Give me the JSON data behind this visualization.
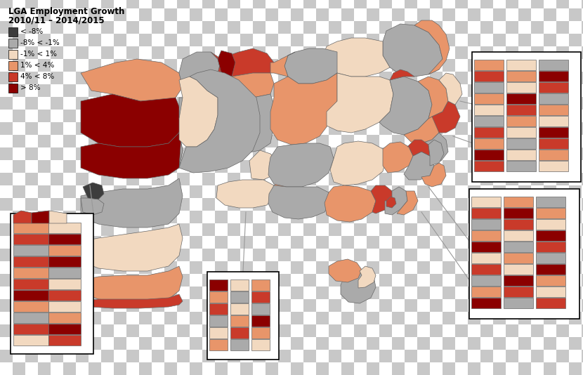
{
  "title_line1": "LGA Employment Growth",
  "title_line2": "2010/11 – 2014/2015",
  "legend_labels": [
    "< -8%",
    "-8% < -1%",
    "-1% < 1%",
    "1% < 4%",
    "4% < 8%",
    "> 8%"
  ],
  "legend_colors": [
    "#3d3d3d",
    "#aaaaaa",
    "#f2d9c0",
    "#e8956a",
    "#c93a2a",
    "#8b0000"
  ],
  "checker1": "#ffffff",
  "checker2": "#c8c8c8",
  "title_fontsize": 8.5,
  "legend_fontsize": 7.5
}
